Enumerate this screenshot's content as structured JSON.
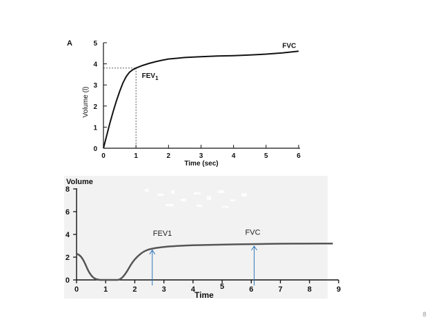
{
  "page": {
    "number": "8"
  },
  "chart_data": [
    {
      "type": "line",
      "panel_label": "A",
      "xlabel": "Time (sec)",
      "ylabel": "Volume (l)",
      "xlim": [
        0,
        6
      ],
      "ylim": [
        0,
        5
      ],
      "x_ticks": [
        0,
        1,
        2,
        3,
        4,
        5,
        6
      ],
      "y_ticks": [
        0,
        1,
        2,
        3,
        4,
        5
      ],
      "grid": false,
      "series": [
        {
          "x": [
            0,
            0.1,
            0.2,
            0.3,
            0.4,
            0.5,
            0.6,
            0.7,
            0.8,
            0.9,
            1.0,
            1.2,
            1.4,
            1.6,
            1.8,
            2.0,
            2.5,
            3.0,
            3.5,
            4.0,
            4.5,
            5.0,
            5.5,
            6.0
          ],
          "y": [
            0,
            0.6,
            1.2,
            1.75,
            2.25,
            2.7,
            3.1,
            3.4,
            3.6,
            3.72,
            3.8,
            3.92,
            4.02,
            4.1,
            4.17,
            4.23,
            4.3,
            4.34,
            4.37,
            4.39,
            4.42,
            4.46,
            4.52,
            4.6
          ]
        }
      ],
      "reference_lines": {
        "x": 1.0,
        "y": 3.8,
        "style": "dotted"
      },
      "annotations": [
        {
          "text": "FEV",
          "subscript": "1",
          "x": 1.18,
          "y": 3.6
        },
        {
          "text": "FVC",
          "x": 5.5,
          "y": 4.75
        }
      ]
    },
    {
      "type": "line",
      "xlabel": "Time",
      "ylabel": "Volume",
      "xlim": [
        0,
        9
      ],
      "ylim": [
        0,
        8
      ],
      "x_ticks": [
        0,
        1,
        2,
        3,
        4,
        5,
        6,
        7,
        8,
        9
      ],
      "y_ticks": [
        0,
        2,
        4,
        6,
        8
      ],
      "grid": false,
      "series": [
        {
          "x": [
            0,
            0.1,
            0.2,
            0.3,
            0.4,
            0.5,
            0.6,
            0.7,
            0.8,
            0.9,
            1.0,
            1.3,
            1.5,
            1.7,
            1.9,
            2.1,
            2.3,
            2.5,
            2.7,
            3.0,
            3.5,
            4.0,
            5.0,
            6.0,
            7.0,
            8.0,
            8.8
          ],
          "y": [
            2.3,
            2.2,
            1.9,
            1.4,
            0.8,
            0.4,
            0.15,
            0.05,
            0.0,
            0.0,
            0.0,
            0.0,
            0.0,
            0.6,
            1.5,
            2.1,
            2.5,
            2.7,
            2.8,
            2.9,
            3.0,
            3.05,
            3.1,
            3.15,
            3.18,
            3.2,
            3.2
          ]
        }
      ],
      "annotations": [
        {
          "text": "FEV1",
          "arrow_x": 2.6,
          "arrow_y": 2.8,
          "label_y": 4.0
        },
        {
          "text": "FVC",
          "arrow_x": 6.1,
          "arrow_y": 3.15,
          "label_y": 4.1
        }
      ],
      "arrow_color": "#2e75b6"
    }
  ]
}
